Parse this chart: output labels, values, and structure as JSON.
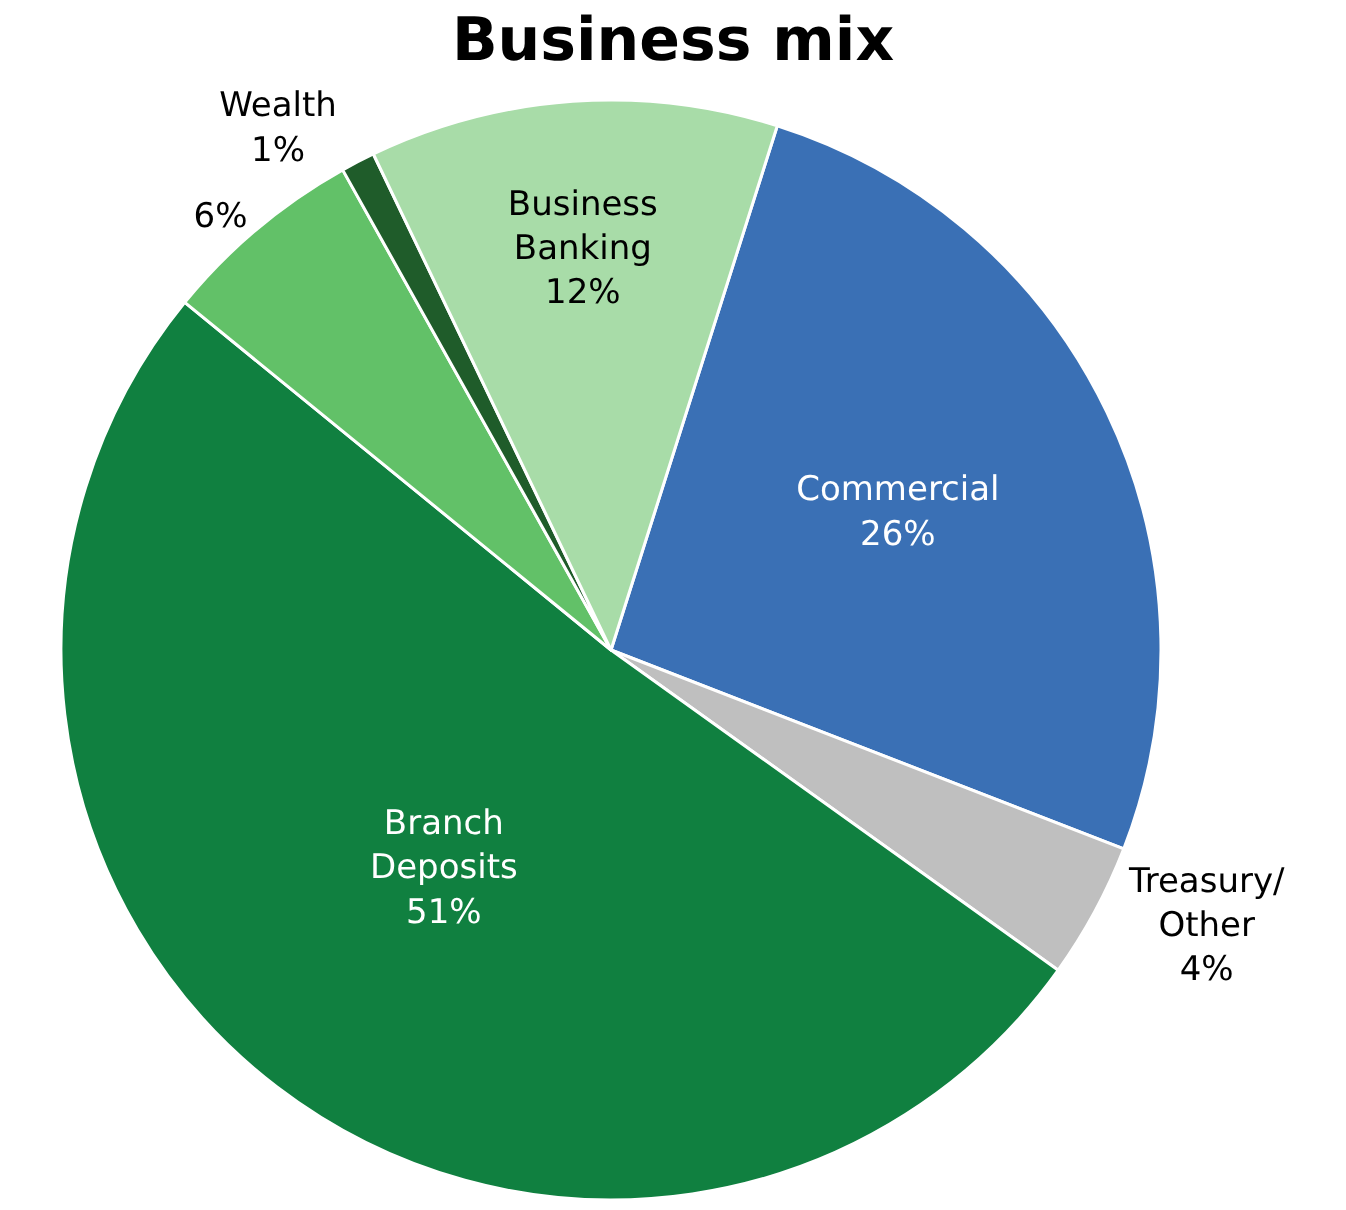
{
  "chart_data": {
    "type": "pie",
    "title": "Business mix",
    "categories": [
      "Commercial",
      "Treasury/ Other",
      "Branch Deposits",
      null,
      "Wealth",
      "Business Banking"
    ],
    "values": [
      26,
      4,
      51,
      6,
      1,
      12
    ],
    "colors": [
      "#3a70b5",
      "#bfbfbf",
      "#108040",
      "#62c168",
      "#1f5c2a",
      "#a8dca8"
    ],
    "value_labels": [
      "26%",
      "4%",
      "51%",
      "6%",
      "1%",
      "12%"
    ],
    "legend": false
  }
}
